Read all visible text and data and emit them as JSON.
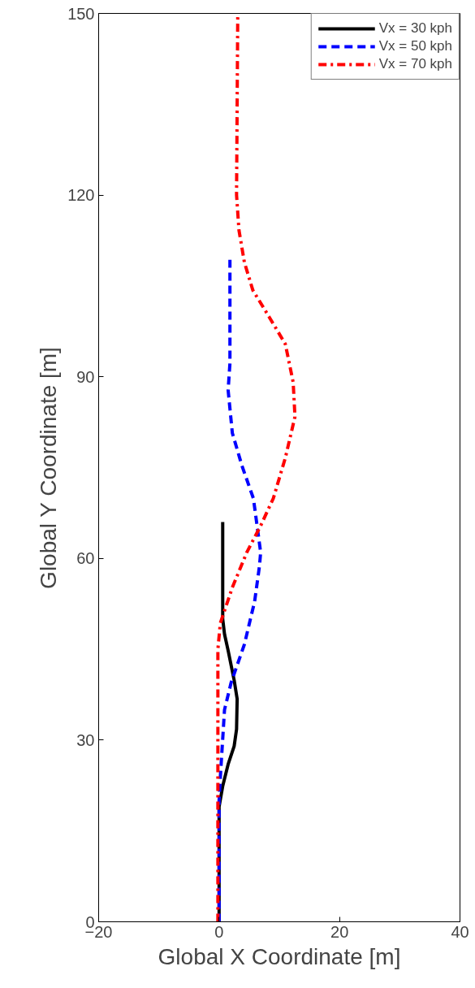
{
  "chart_data": {
    "type": "line",
    "xlabel": "Global X Coordinate [m]",
    "ylabel": "Global Y Coordinate [m]",
    "xlim": [
      -20,
      40
    ],
    "ylim": [
      0,
      150
    ],
    "xticks": [
      -20,
      0,
      20,
      40
    ],
    "yticks": [
      0,
      30,
      60,
      90,
      120,
      150
    ],
    "grid": false,
    "legend": "top right",
    "marker": "none",
    "series": [
      {
        "name": "Vx = 30 kph",
        "color": "#000000",
        "line_style": "solid",
        "x": [
          0,
          0,
          0.6,
          1.5,
          2.5,
          2.9,
          3.0,
          2.5,
          1.5,
          0.9,
          0.6,
          0.6
        ],
        "values": [
          0,
          19,
          22.4,
          26,
          29,
          31.8,
          36.8,
          39.9,
          44.8,
          47.5,
          50,
          66
        ]
      },
      {
        "name": "Vx = 50 kph",
        "color": "#0000ff",
        "line_style": "dashed",
        "x": [
          0,
          0,
          0.2,
          0.9,
          2,
          4.2,
          5.9,
          6.7,
          6.9,
          5.7,
          3.8,
          2.2,
          1.5,
          1.8,
          1.8
        ],
        "values": [
          0,
          20,
          23.8,
          35,
          39.5,
          45.8,
          52.9,
          58.7,
          61,
          69.9,
          75.3,
          80.7,
          87.8,
          92.2,
          109.3
        ]
      },
      {
        "name": "Vx = 70 kph",
        "color": "#ff0000",
        "line_style": "dashdot",
        "x": [
          -0.2,
          -0.2,
          0.2,
          2.2,
          4.6,
          6.9,
          9,
          11,
          12.6,
          12.3,
          11,
          8.3,
          5.6,
          4.2,
          3.3,
          2.9,
          3.1
        ],
        "values": [
          0,
          45,
          49.3,
          55.2,
          61,
          65.4,
          69.9,
          76.6,
          83.4,
          89.1,
          95.4,
          99.9,
          104.3,
          108.9,
          114.2,
          120,
          150
        ]
      }
    ]
  }
}
